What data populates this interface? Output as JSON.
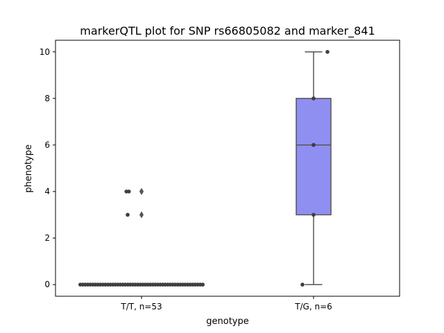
{
  "chart_data": {
    "type": "box",
    "title": "markerQTL plot for SNP rs66805082 and marker_841",
    "xlabel": "genotype",
    "ylabel": "phenotype",
    "ylim": [
      -0.5,
      10.5
    ],
    "yticks": [
      0,
      2,
      4,
      6,
      8,
      10
    ],
    "categories": [
      "T/T, n=53",
      "T/G, n=6"
    ],
    "boxes": [
      {
        "category": "T/T, n=53",
        "q1": 0,
        "median": 0,
        "q3": 0,
        "whisker_low": 0,
        "whisker_high": 0,
        "outliers": [
          3,
          4,
          4
        ]
      },
      {
        "category": "T/G, n=6",
        "q1": 3,
        "median": 6,
        "q3": 8,
        "whisker_low": 0,
        "whisker_high": 10,
        "outliers": []
      }
    ],
    "points": [
      {
        "category": "T/T, n=53",
        "values": [
          0,
          0,
          0,
          0,
          0,
          0,
          0,
          0,
          0,
          0,
          0,
          0,
          0,
          0,
          0,
          0,
          0,
          0,
          0,
          0,
          0,
          0,
          0,
          0,
          0,
          0,
          0,
          0,
          0,
          0,
          0,
          0,
          0,
          0,
          0,
          0,
          0,
          0,
          0,
          0,
          0,
          0,
          0,
          0,
          0,
          0,
          0,
          0,
          0,
          0,
          3,
          4,
          4
        ]
      },
      {
        "category": "T/G, n=6",
        "values": [
          0,
          3,
          6,
          6,
          8,
          10
        ]
      }
    ],
    "box_color": "#8f8ff2",
    "edge_color": "#555555",
    "point_color": "#3f3f3f",
    "grid": false,
    "legend": "none"
  }
}
